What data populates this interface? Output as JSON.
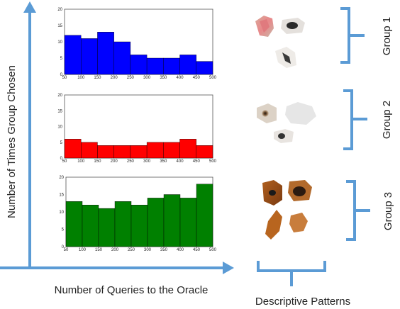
{
  "figure": {
    "y_axis_label": "Number of Times Group Chosen",
    "x_axis_label": "Number of Queries to the Oracle",
    "patterns_label": "Descriptive Patterns",
    "axis_color": "#5b9bd5",
    "brace_color": "#5b9bd5"
  },
  "groups": [
    {
      "label": "Group 1",
      "patches": [
        "dog-ear-patch",
        "dog-nose-patch",
        "dog-mouth-patch"
      ]
    },
    {
      "label": "Group 2",
      "patches": [
        "dog-eye-patch",
        "white-fur-patch",
        "dog-nose-patch"
      ]
    },
    {
      "label": "Group 3",
      "patches": [
        "dog-eye-patch",
        "dog-nose-patch",
        "dog-ear-patch",
        "dog-fur-patch"
      ]
    }
  ],
  "chart_data": [
    {
      "type": "bar",
      "color": "#0000ff",
      "x_ticks": [
        "50",
        "100",
        "150",
        "200",
        "250",
        "300",
        "350",
        "400",
        "450",
        "500"
      ],
      "y_ticks": [
        "0",
        "5",
        "10",
        "15",
        "20"
      ],
      "bin_edges": [
        50,
        100,
        150,
        200,
        250,
        300,
        350,
        400,
        450,
        500
      ],
      "values": [
        12,
        11,
        13,
        10,
        6,
        5,
        5,
        6,
        4
      ],
      "xlim": [
        50,
        500
      ],
      "ylim": [
        0,
        20
      ]
    },
    {
      "type": "bar",
      "color": "#ff0000",
      "x_ticks": [
        "50",
        "100",
        "150",
        "200",
        "250",
        "300",
        "350",
        "400",
        "450",
        "500"
      ],
      "y_ticks": [
        "0",
        "5",
        "10",
        "15",
        "20"
      ],
      "bin_edges": [
        50,
        100,
        150,
        200,
        250,
        300,
        350,
        400,
        450,
        500
      ],
      "values": [
        6,
        5,
        4,
        4,
        4,
        5,
        5,
        6,
        4
      ],
      "xlim": [
        50,
        500
      ],
      "ylim": [
        0,
        20
      ]
    },
    {
      "type": "bar",
      "color": "#008000",
      "x_ticks": [
        "50",
        "100",
        "150",
        "200",
        "250",
        "300",
        "350",
        "400",
        "450",
        "500"
      ],
      "y_ticks": [
        "0",
        "5",
        "10",
        "15",
        "20"
      ],
      "bin_edges": [
        50,
        100,
        150,
        200,
        250,
        300,
        350,
        400,
        450,
        500
      ],
      "values": [
        13,
        12,
        11,
        13,
        12,
        14,
        15,
        14,
        18
      ],
      "xlim": [
        50,
        500
      ],
      "ylim": [
        0,
        20
      ]
    }
  ]
}
